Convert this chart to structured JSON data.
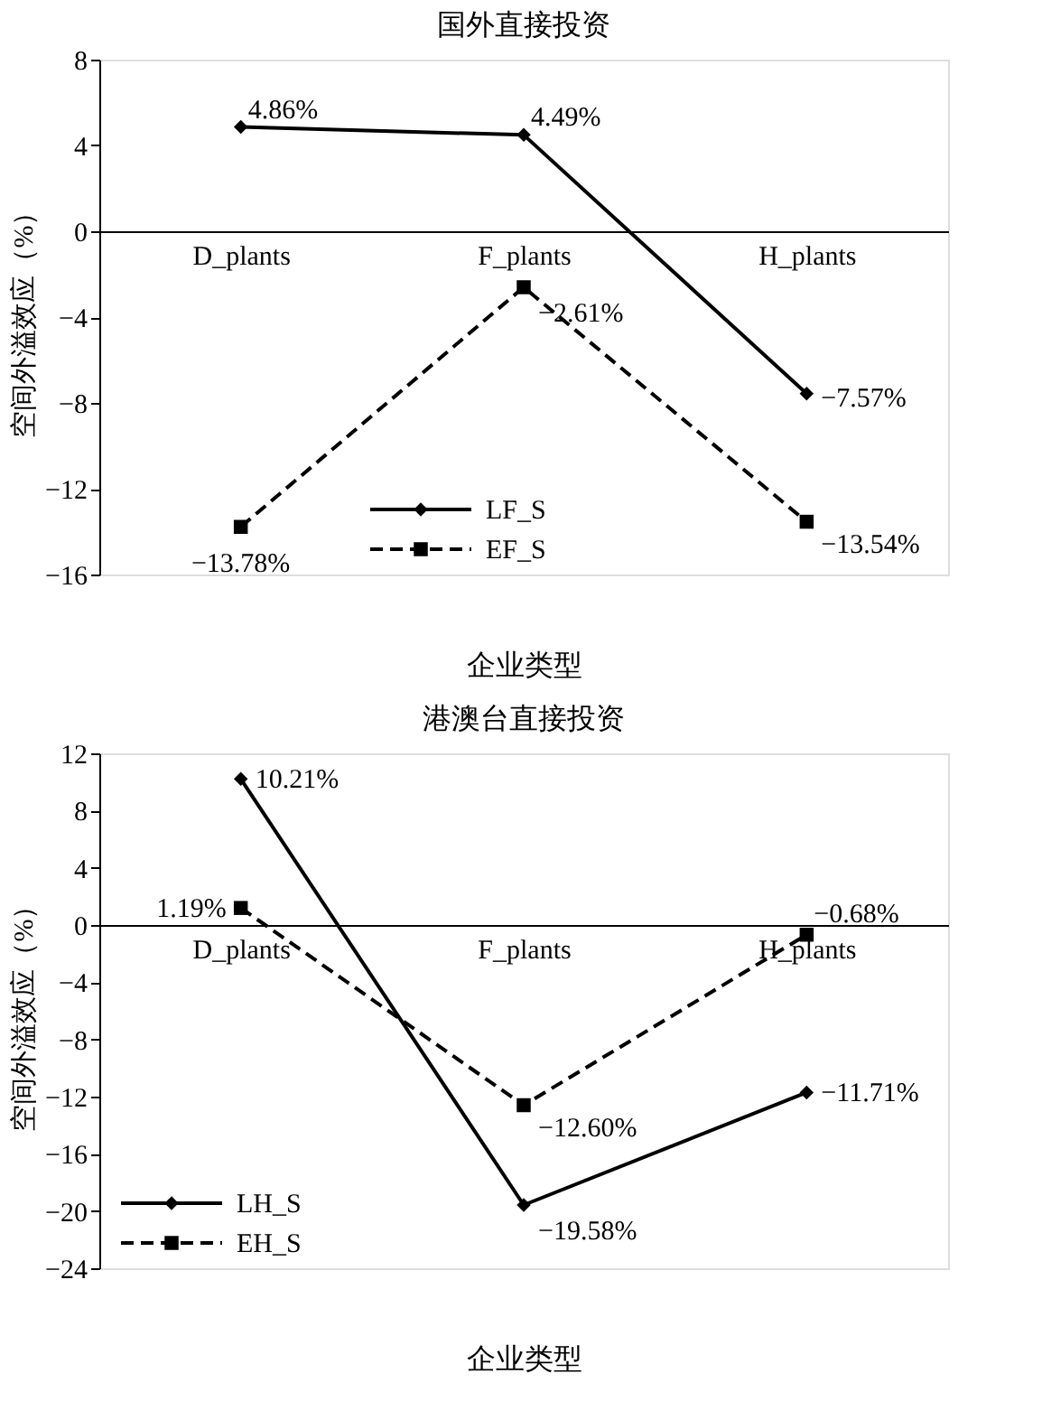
{
  "chart_data": [
    {
      "type": "line",
      "title": "国外直接投资",
      "xlabel": "企业类型",
      "ylabel": "空间外溢效应（%）",
      "categories": [
        "D_plants",
        "F_plants",
        "H_plants"
      ],
      "ylim": [
        -16,
        8
      ],
      "yticks": [
        -16,
        -12,
        -8,
        -4,
        0,
        4,
        8
      ],
      "grid": false,
      "legend": "bottom left",
      "series": [
        {
          "name": "LF_S",
          "color": "#000000",
          "marker": "diamond",
          "line_style": "solid",
          "values": [
            4.86,
            4.49,
            -7.57
          ],
          "value_labels": [
            "4.86%",
            "4.49%",
            "−7.57%"
          ]
        },
        {
          "name": "EF_S",
          "color": "#000000",
          "marker": "square",
          "line_style": "dashed",
          "values": [
            -13.78,
            -2.61,
            -13.54
          ],
          "value_labels": [
            "−13.78%",
            "−2.61%",
            "−13.54%"
          ]
        }
      ]
    },
    {
      "type": "line",
      "title": "港澳台直接投资",
      "xlabel": "企业类型",
      "ylabel": "空间外溢效应（%）",
      "categories": [
        "D_plants",
        "F_plants",
        "H_plants"
      ],
      "ylim": [
        -24,
        12
      ],
      "yticks": [
        -24,
        -20,
        -16,
        -12,
        -8,
        -4,
        0,
        4,
        8,
        12
      ],
      "grid": false,
      "legend": "bottom left",
      "series": [
        {
          "name": "LH_S",
          "color": "#000000",
          "marker": "diamond",
          "line_style": "solid",
          "values": [
            10.21,
            -19.58,
            -11.71
          ],
          "value_labels": [
            "10.21%",
            "−19.58%",
            "−11.71%"
          ]
        },
        {
          "name": "EH_S",
          "color": "#000000",
          "marker": "square",
          "line_style": "dashed",
          "values": [
            1.19,
            -12.6,
            -0.68
          ],
          "value_labels": [
            "1.19%",
            "−12.60%",
            "−0.68%"
          ]
        }
      ]
    }
  ]
}
